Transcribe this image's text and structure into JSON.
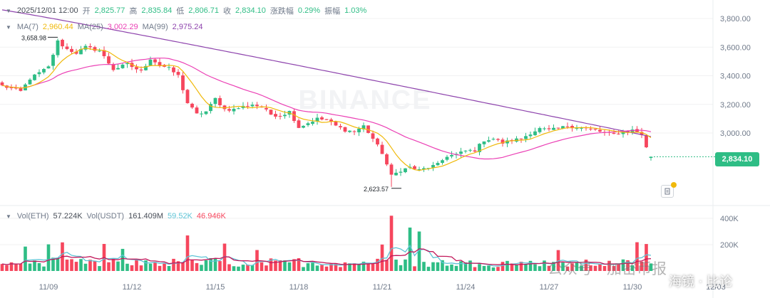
{
  "header": {
    "datetime": "2025/12/01 12:00",
    "open_label": "开",
    "open": "2,825.77",
    "high_label": "高",
    "high": "2,835.84",
    "low_label": "低",
    "low": "2,806.71",
    "close_label": "收",
    "close": "2,834.10",
    "change_label": "涨跌幅",
    "change": "0.29%",
    "amplitude_label": "振幅",
    "amplitude": "1.03%"
  },
  "ma_line": {
    "ma7_label": "MA(7)",
    "ma7": "2,960.44",
    "ma25_label": "MA(25)",
    "ma25": "3,002.29",
    "ma99_label": "MA(99)",
    "ma99": "2,975.24"
  },
  "vol_line": {
    "vol_eth_label": "Vol(ETH)",
    "vol_eth": "57.224K",
    "vol_usdt_label": "Vol(USDT)",
    "vol_usdt": "161.409M",
    "vol_ma1": "59.52K",
    "vol_ma2": "46.946K"
  },
  "current_price": "2,834.10",
  "watermark": {
    "exchange": "BINANCE",
    "wechat": "公众号 · 加密币报",
    "user": "海镜 · 比论"
  },
  "colors": {
    "up": "#2ebd85",
    "down": "#f6465d",
    "ma7": "#f0b90b",
    "ma25": "#eb40b5",
    "ma99": "#8e44ad",
    "vol_ma1": "#5ec4d6",
    "vol_ma2": "#c2185b"
  },
  "chart_data": {
    "type": "candlestick",
    "interval": "4h",
    "price_axis": {
      "ticks": [
        3800,
        3600,
        3400,
        3200,
        3000
      ],
      "tick_labels": [
        "3,800.00",
        "3,600.00",
        "3,400.00",
        "3,200.00",
        "3,000.00"
      ],
      "range": [
        2560,
        3870
      ]
    },
    "volume_axis": {
      "ticks": [
        400000,
        200000
      ],
      "tick_labels": [
        "400K",
        "200K"
      ],
      "range": [
        0,
        440000
      ]
    },
    "x_tick_labels": [
      "11/09",
      "11/12",
      "11/15",
      "11/18",
      "11/21",
      "11/24",
      "11/27",
      "11/30",
      "12/03"
    ],
    "x_tick_indices": [
      10,
      28,
      46,
      64,
      82,
      100,
      118,
      136,
      154
    ],
    "annotations": {
      "high": {
        "label": "3,658.98",
        "index": 12,
        "value": 3658.98
      },
      "low": {
        "label": "2,623.57",
        "index": 84,
        "value": 2623.57
      }
    },
    "anchors": [
      [
        0,
        3330
      ],
      [
        4,
        3290
      ],
      [
        6,
        3380
      ],
      [
        8,
        3420
      ],
      [
        10,
        3460
      ],
      [
        12,
        3640
      ],
      [
        14,
        3585
      ],
      [
        16,
        3560
      ],
      [
        18,
        3600
      ],
      [
        21,
        3575
      ],
      [
        24,
        3445
      ],
      [
        27,
        3480
      ],
      [
        30,
        3430
      ],
      [
        32,
        3520
      ],
      [
        34,
        3475
      ],
      [
        36,
        3450
      ],
      [
        38,
        3400
      ],
      [
        40,
        3210
      ],
      [
        42,
        3130
      ],
      [
        44,
        3150
      ],
      [
        46,
        3240
      ],
      [
        48,
        3165
      ],
      [
        50,
        3165
      ],
      [
        52,
        3185
      ],
      [
        54,
        3200
      ],
      [
        56,
        3180
      ],
      [
        58,
        3130
      ],
      [
        60,
        3120
      ],
      [
        62,
        3150
      ],
      [
        64,
        3040
      ],
      [
        66,
        3070
      ],
      [
        68,
        3100
      ],
      [
        70,
        3090
      ],
      [
        72,
        3050
      ],
      [
        74,
        3020
      ],
      [
        76,
        3010
      ],
      [
        78,
        3050
      ],
      [
        80,
        2960
      ],
      [
        82,
        2860
      ],
      [
        84,
        2700
      ],
      [
        86,
        2740
      ],
      [
        88,
        2760
      ],
      [
        90,
        2740
      ],
      [
        92,
        2760
      ],
      [
        94,
        2780
      ],
      [
        96,
        2840
      ],
      [
        98,
        2850
      ],
      [
        100,
        2875
      ],
      [
        102,
        2880
      ],
      [
        104,
        2950
      ],
      [
        106,
        2960
      ],
      [
        108,
        2930
      ],
      [
        110,
        2950
      ],
      [
        112,
        2960
      ],
      [
        114,
        3000
      ],
      [
        116,
        3030
      ],
      [
        118,
        3020
      ],
      [
        120,
        3030
      ],
      [
        122,
        3050
      ],
      [
        124,
        3040
      ],
      [
        126,
        3030
      ],
      [
        128,
        3020
      ],
      [
        130,
        3000
      ],
      [
        132,
        2990
      ],
      [
        134,
        3010
      ],
      [
        136,
        3020
      ],
      [
        138,
        2990
      ],
      [
        139,
        2900
      ],
      [
        140,
        2834
      ]
    ]
  }
}
